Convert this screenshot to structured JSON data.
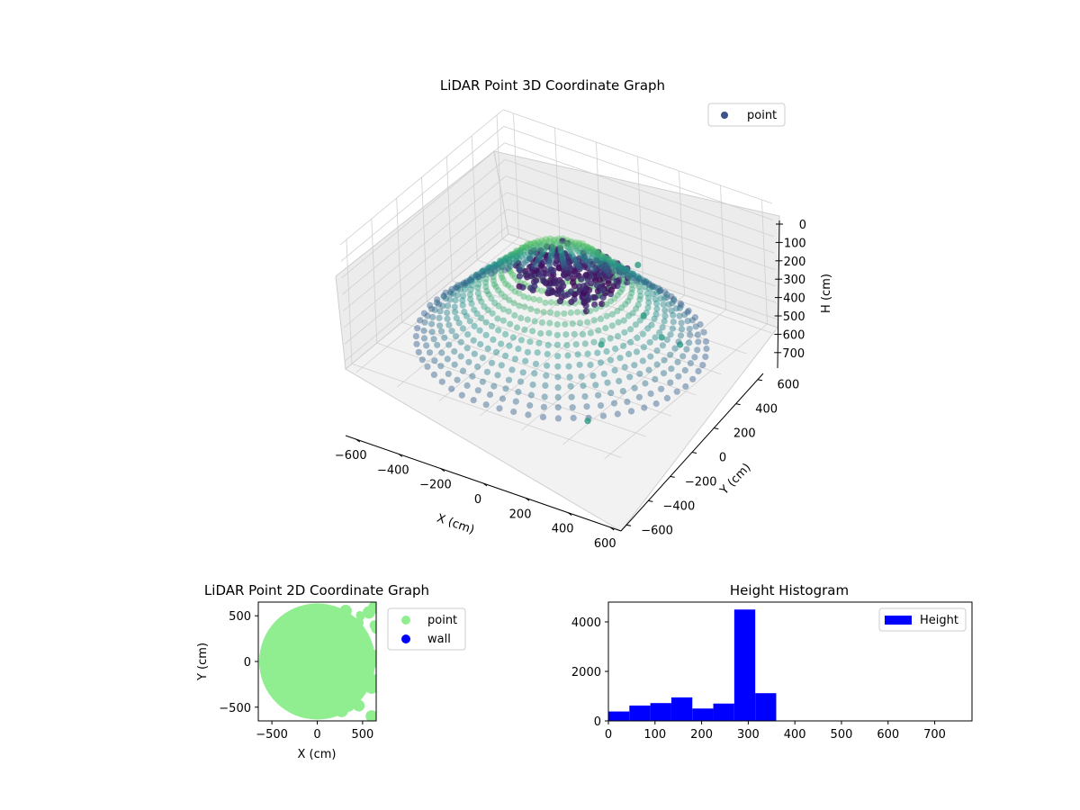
{
  "chart_data": [
    {
      "type": "scatter",
      "projection": "3d",
      "title": "LiDAR Point 3D Coordinate Graph",
      "xlabel": "X (cm)",
      "ylabel": "Y (cm)",
      "zlabel": "H (cm)",
      "xlim": [
        -650,
        650
      ],
      "ylim": [
        -650,
        650
      ],
      "zlim": [
        0,
        750
      ],
      "z_inverted": true,
      "xticks": [
        -600,
        -400,
        -200,
        0,
        200,
        400,
        600
      ],
      "yticks": [
        -600,
        -400,
        -200,
        0,
        200,
        400,
        600
      ],
      "zticks": [
        0,
        100,
        200,
        300,
        400,
        500,
        600,
        700
      ],
      "grid": true,
      "legend": {
        "placement": "top-right",
        "entries": [
          "point"
        ]
      },
      "colormap": "viridis",
      "series": [
        {
          "name": "point",
          "shape": "ring",
          "radius": 600,
          "height_range": [
            180,
            720
          ],
          "dense_cluster": {
            "x": [
              -150,
              250
            ],
            "y": [
              -150,
              200
            ],
            "h": [
              250,
              350
            ]
          },
          "scattered_points": [
            {
              "x": 430,
              "y": 100,
              "h": 560
            },
            {
              "x": 310,
              "y": -180,
              "h": 480
            },
            {
              "x": 380,
              "y": -420,
              "h": 760
            },
            {
              "x": 150,
              "y": 380,
              "h": 420
            },
            {
              "x": 550,
              "y": 50,
              "h": 520
            },
            {
              "x": 250,
              "y": 250,
              "h": 600
            }
          ]
        }
      ]
    },
    {
      "type": "scatter",
      "title": "LiDAR Point 2D Coordinate Graph",
      "xlabel": "X (cm)",
      "ylabel": "Y (cm)",
      "xlim": [
        -650,
        650
      ],
      "ylim": [
        -650,
        650
      ],
      "xticks": [
        -500,
        0,
        500
      ],
      "yticks": [
        -500,
        0,
        500
      ],
      "legend": {
        "placement": "outside-right",
        "entries": [
          "point",
          "wall"
        ]
      },
      "series": [
        {
          "name": "point",
          "color": "#90ee90",
          "shape": "filled-disk",
          "radius": 640
        },
        {
          "name": "wall",
          "color": "#0000ff",
          "values": []
        }
      ]
    },
    {
      "type": "bar",
      "subtype": "histogram",
      "title": "Height Histogram",
      "xlabel": "",
      "ylabel": "",
      "xlim": [
        0,
        780
      ],
      "ylim": [
        0,
        4800
      ],
      "xticks": [
        0,
        100,
        200,
        300,
        400,
        500,
        600,
        700
      ],
      "yticks": [
        0,
        2000,
        4000
      ],
      "bin_width": 45,
      "bin_edges": [
        0,
        45,
        90,
        135,
        180,
        225,
        270,
        315,
        360,
        405,
        450,
        495,
        540,
        585,
        630,
        675,
        720,
        765
      ],
      "legend": {
        "placement": "top-right",
        "entries": [
          "Height"
        ]
      },
      "series": [
        {
          "name": "Height",
          "color": "#0000ff",
          "values": [
            380,
            620,
            720,
            950,
            500,
            700,
            4500,
            1120,
            0,
            0,
            0,
            0,
            0,
            0,
            0,
            0,
            0
          ]
        }
      ]
    }
  ]
}
